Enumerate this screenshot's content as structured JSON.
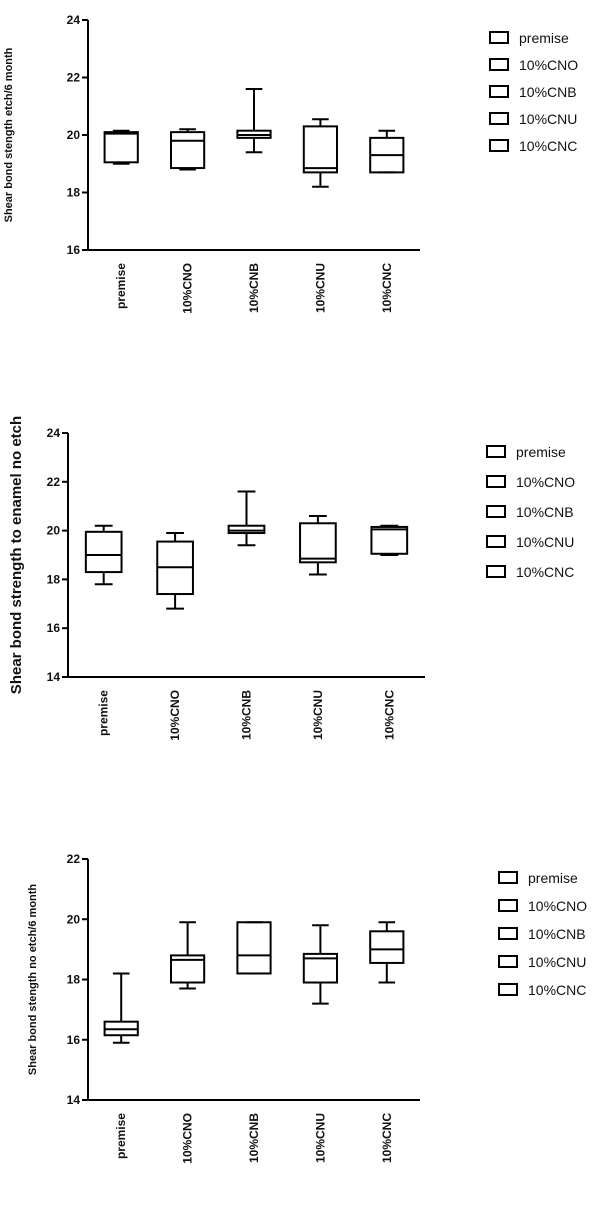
{
  "chart_data": [
    {
      "type": "box",
      "ylabel": "Shear bond stength etch/6 month",
      "ylim": [
        16,
        24
      ],
      "yticks": [
        16,
        18,
        20,
        22,
        24
      ],
      "categories": [
        "premise",
        "10%CNO",
        "10%CNB",
        "10%CNU",
        "10%CNC"
      ],
      "legend": [
        "premise",
        "10%CNO",
        "10%CNB",
        "10%CNU",
        "10%CNC"
      ],
      "legend_position": "right",
      "series": [
        {
          "category": "premise",
          "min": 19.0,
          "q1": 19.05,
          "median": 20.05,
          "q3": 20.1,
          "max": 20.15
        },
        {
          "category": "10%CNO",
          "min": 18.8,
          "q1": 18.85,
          "median": 19.8,
          "q3": 20.1,
          "max": 20.2
        },
        {
          "category": "10%CNB",
          "min": 19.4,
          "q1": 19.9,
          "median": 20.0,
          "q3": 20.15,
          "max": 21.6
        },
        {
          "category": "10%CNU",
          "min": 18.2,
          "q1": 18.7,
          "median": 18.85,
          "q3": 20.3,
          "max": 20.55
        },
        {
          "category": "10%CNC",
          "min": 18.7,
          "q1": 18.7,
          "median": 19.3,
          "q3": 19.9,
          "max": 20.15
        }
      ]
    },
    {
      "type": "box",
      "ylabel": "Shear bond strength to enamel no etch",
      "ylim": [
        14,
        24
      ],
      "yticks": [
        14,
        16,
        18,
        20,
        22,
        24
      ],
      "categories": [
        "premise",
        "10%CNO",
        "10%CNB",
        "10%CNU",
        "10%CNC"
      ],
      "legend": [
        "premise",
        "10%CNO",
        "10%CNB",
        "10%CNU",
        "10%CNC"
      ],
      "legend_position": "right",
      "series": [
        {
          "category": "premise",
          "min": 17.8,
          "q1": 18.3,
          "median": 19.0,
          "q3": 19.95,
          "max": 20.2
        },
        {
          "category": "10%CNO",
          "min": 16.8,
          "q1": 17.4,
          "median": 18.5,
          "q3": 19.55,
          "max": 19.9
        },
        {
          "category": "10%CNB",
          "min": 19.4,
          "q1": 19.9,
          "median": 20.0,
          "q3": 20.2,
          "max": 21.6
        },
        {
          "category": "10%CNU",
          "min": 18.2,
          "q1": 18.7,
          "median": 18.85,
          "q3": 20.3,
          "max": 20.6
        },
        {
          "category": "10%CNC",
          "min": 19.0,
          "q1": 19.05,
          "median": 20.05,
          "q3": 20.15,
          "max": 20.2
        }
      ]
    },
    {
      "type": "box",
      "ylabel": "Shear bond stength no etch/6 month",
      "ylim": [
        14,
        22
      ],
      "yticks": [
        14,
        16,
        18,
        20,
        22
      ],
      "categories": [
        "premise",
        "10%CNO",
        "10%CNB",
        "10%CNU",
        "10%CNC"
      ],
      "legend": [
        "premise",
        "10%CNO",
        "10%CNB",
        "10%CNU",
        "10%CNC"
      ],
      "legend_position": "right",
      "series": [
        {
          "category": "premise",
          "min": 15.9,
          "q1": 16.15,
          "median": 16.35,
          "q3": 16.6,
          "max": 18.2
        },
        {
          "category": "10%CNO",
          "min": 17.7,
          "q1": 17.9,
          "median": 18.65,
          "q3": 18.8,
          "max": 19.9
        },
        {
          "category": "10%CNB",
          "min": 18.2,
          "q1": 18.2,
          "median": 18.8,
          "q3": 19.9,
          "max": 19.9
        },
        {
          "category": "10%CNU",
          "min": 17.2,
          "q1": 17.9,
          "median": 18.7,
          "q3": 18.85,
          "max": 19.8
        },
        {
          "category": "10%CNC",
          "min": 17.9,
          "q1": 18.55,
          "median": 19.0,
          "q3": 19.6,
          "max": 19.9
        }
      ]
    }
  ]
}
